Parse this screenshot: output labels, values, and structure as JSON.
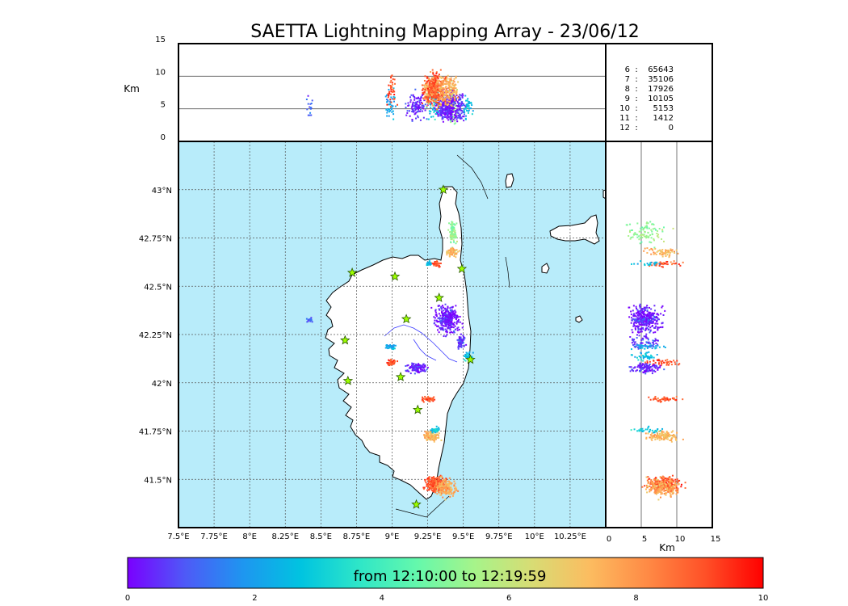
{
  "title": "SAETTA Lightning Mapping Array - 23/06/12",
  "colors": {
    "sea": "#b8ecfa",
    "land": "#ffffff",
    "coast": "#000000",
    "river": "#3a3aff",
    "station_fill": "#9dff00",
    "station_stroke": "#2a5a00",
    "highlight": "#ff0000",
    "frame": "#000000",
    "gridline": "#555555"
  },
  "stats_panel": {
    "rows": [
      {
        "key": "6",
        "sep": ":",
        "value": "65643"
      },
      {
        "key": "7",
        "sep": ":",
        "value": "35106",
        "highlight": true
      },
      {
        "key": "8",
        "sep": ":",
        "value": "17926"
      },
      {
        "key": "9",
        "sep": ":",
        "value": "10105"
      },
      {
        "key": "10",
        "sep": ":",
        "value": "5153"
      },
      {
        "key": "11",
        "sep": ":",
        "value": "1412"
      },
      {
        "key": "12",
        "sep": ":",
        "value": "0"
      }
    ]
  },
  "colorbar": {
    "label": "from 12:10:00 to 12:19:59",
    "ticks": [
      "0",
      "2",
      "4",
      "6",
      "8",
      "10"
    ],
    "range": [
      0,
      10
    ],
    "colors": [
      "#7a00ff",
      "#4e5af7",
      "#1e96f0",
      "#00c4e0",
      "#2ee6c8",
      "#64f8ac",
      "#a6f48a",
      "#d8dc74",
      "#fcbc60",
      "#ff8a45",
      "#ff5027",
      "#ff0000"
    ]
  },
  "chart_data": [
    {
      "type": "scatter",
      "panel": "map (plan view)",
      "x_axis": {
        "range": [
          7.5,
          10.5
        ],
        "ticks": [
          7.5,
          7.75,
          8.0,
          8.25,
          8.5,
          8.75,
          9.0,
          9.25,
          9.5,
          9.75,
          10.0,
          10.25
        ],
        "tick_labels": [
          "7.5°E",
          "7.75°E",
          "8°E",
          "8.25°E",
          "8.5°E",
          "8.75°E",
          "9°E",
          "9.25°E",
          "9.5°E",
          "9.75°E",
          "10°E",
          "10.25°E"
        ]
      },
      "y_axis": {
        "range": [
          41.25,
          43.25
        ],
        "ticks": [
          41.5,
          41.75,
          42.0,
          42.25,
          42.5,
          42.75,
          43.0
        ],
        "tick_labels": [
          "41.5°N",
          "41.75°N",
          "42°N",
          "42.25°N",
          "42.5°N",
          "42.75°N",
          "43°N"
        ]
      },
      "grid": true,
      "stations": [
        {
          "lon": 9.36,
          "lat": 43.0
        },
        {
          "lon": 9.49,
          "lat": 42.59
        },
        {
          "lon": 8.72,
          "lat": 42.57
        },
        {
          "lon": 9.02,
          "lat": 42.55
        },
        {
          "lon": 9.33,
          "lat": 42.44
        },
        {
          "lon": 9.1,
          "lat": 42.33
        },
        {
          "lon": 8.67,
          "lat": 42.22
        },
        {
          "lon": 9.55,
          "lat": 42.12
        },
        {
          "lon": 8.69,
          "lat": 42.01
        },
        {
          "lon": 9.06,
          "lat": 42.03
        },
        {
          "lon": 9.18,
          "lat": 41.86
        },
        {
          "lon": 9.17,
          "lat": 41.37
        }
      ],
      "clusters": [
        {
          "lon": 9.42,
          "lat": 42.78,
          "spread": [
            0.04,
            0.08
          ],
          "n": 90,
          "time": 5.2
        },
        {
          "lon": 9.42,
          "lat": 42.68,
          "spread": [
            0.06,
            0.04
          ],
          "n": 60,
          "time": 7.4
        },
        {
          "lon": 9.3,
          "lat": 42.62,
          "spread": [
            0.06,
            0.02
          ],
          "n": 40,
          "time": 9.0
        },
        {
          "lon": 9.25,
          "lat": 42.62,
          "spread": [
            0.03,
            0.02
          ],
          "n": 20,
          "time": 2.6
        },
        {
          "lon": 9.38,
          "lat": 42.33,
          "spread": [
            0.13,
            0.1
          ],
          "n": 320,
          "time": 0.2
        },
        {
          "lon": 9.48,
          "lat": 42.22,
          "spread": [
            0.04,
            0.05
          ],
          "n": 60,
          "time": 0.5
        },
        {
          "lon": 8.42,
          "lat": 42.33,
          "spread": [
            0.03,
            0.02
          ],
          "n": 15,
          "time": 1.0
        },
        {
          "lon": 8.98,
          "lat": 42.19,
          "spread": [
            0.06,
            0.02
          ],
          "n": 40,
          "time": 2.0
        },
        {
          "lon": 9.53,
          "lat": 42.14,
          "spread": [
            0.04,
            0.03
          ],
          "n": 40,
          "time": 2.6
        },
        {
          "lon": 8.99,
          "lat": 42.11,
          "spread": [
            0.05,
            0.02
          ],
          "n": 40,
          "time": 9.2
        },
        {
          "lon": 9.17,
          "lat": 42.08,
          "spread": [
            0.11,
            0.04
          ],
          "n": 110,
          "time": 0.4
        },
        {
          "lon": 9.25,
          "lat": 41.92,
          "spread": [
            0.07,
            0.02
          ],
          "n": 50,
          "time": 9.0
        },
        {
          "lon": 9.27,
          "lat": 41.73,
          "spread": [
            0.08,
            0.04
          ],
          "n": 130,
          "time": 7.3
        },
        {
          "lon": 9.3,
          "lat": 41.76,
          "spread": [
            0.04,
            0.02
          ],
          "n": 30,
          "time": 2.8
        },
        {
          "lon": 9.3,
          "lat": 41.48,
          "spread": [
            0.1,
            0.06
          ],
          "n": 240,
          "time": 9.0
        },
        {
          "lon": 9.38,
          "lat": 41.46,
          "spread": [
            0.1,
            0.07
          ],
          "n": 160,
          "time": 7.6
        }
      ]
    },
    {
      "type": "scatter",
      "panel": "longitude vs altitude (top)",
      "x_axis": {
        "range": [
          7.5,
          10.5
        ]
      },
      "y_axis": {
        "label": "Km",
        "range": [
          0,
          15
        ],
        "ticks": [
          0,
          5,
          10,
          15
        ],
        "tick_labels": [
          "0",
          "5",
          "10",
          "15"
        ]
      },
      "gridlines_at": [
        5,
        10
      ]
    },
    {
      "type": "scatter",
      "panel": "altitude vs latitude (right)",
      "x_axis": {
        "label": "Km",
        "range": [
          0,
          15
        ],
        "ticks": [
          0,
          5,
          10,
          15
        ],
        "tick_labels": [
          "0",
          "5",
          "10",
          "15"
        ]
      },
      "y_axis": {
        "range": [
          41.25,
          43.25
        ]
      },
      "gridlines_at": [
        5,
        10
      ]
    }
  ]
}
